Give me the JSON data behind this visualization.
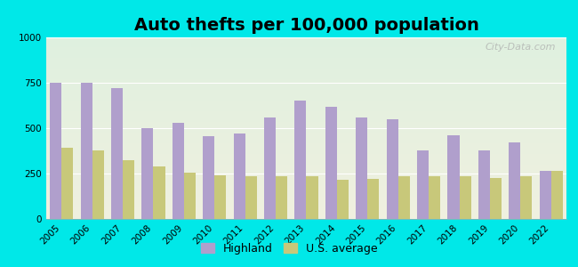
{
  "title": "Auto thefts per 100,000 population",
  "years": [
    2005,
    2006,
    2007,
    2008,
    2009,
    2010,
    2011,
    2012,
    2013,
    2014,
    2015,
    2016,
    2017,
    2018,
    2019,
    2020,
    2022
  ],
  "highland": [
    750,
    750,
    720,
    500,
    530,
    455,
    470,
    560,
    650,
    620,
    560,
    550,
    375,
    460,
    375,
    420,
    265
  ],
  "us_average": [
    390,
    375,
    325,
    290,
    255,
    240,
    235,
    235,
    235,
    215,
    220,
    235,
    235,
    235,
    225,
    235,
    265
  ],
  "highland_color": "#b09fcc",
  "us_avg_color": "#c8c87a",
  "background_outer": "#00e8e8",
  "background_plot_top": "#dff0df",
  "background_plot_bottom": "#f0f0e0",
  "ylim": [
    0,
    1000
  ],
  "yticks": [
    0,
    250,
    500,
    750,
    1000
  ],
  "bar_width": 0.38,
  "title_fontsize": 14,
  "tick_fontsize": 7.5,
  "legend_fontsize": 9,
  "watermark": "City-Data.com"
}
